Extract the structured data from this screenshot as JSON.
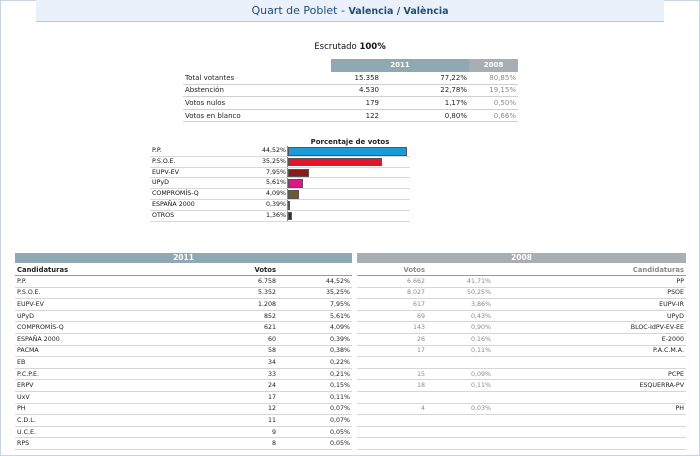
{
  "header": {
    "place": "Quart de Poblet",
    "separator": " - ",
    "province": "Valencia / València"
  },
  "escrutado": {
    "label": "Escrutado",
    "value": "100%"
  },
  "summary": {
    "year_2011": "2011",
    "year_2008": "2008",
    "rows": [
      {
        "label": "Total votantes",
        "v2011": "15.358",
        "p2011": "77,22%",
        "p2008": "80,85%"
      },
      {
        "label": "Abstención",
        "v2011": "4.530",
        "p2011": "22,78%",
        "p2008": "19,15%"
      },
      {
        "label": "Votos nulos",
        "v2011": "179",
        "p2011": "1,17%",
        "p2008": "0,50%"
      },
      {
        "label": "Votos en blanco",
        "v2011": "122",
        "p2011": "0,80%",
        "p2008": "0,66%"
      }
    ]
  },
  "chart_data": {
    "type": "bar",
    "title": "Porcentaje de votos",
    "categories": [
      "P.P.",
      "P.S.O.E.",
      "EUPV-EV",
      "UPyD",
      "COMPROMÍS-Q",
      "ESPAÑA 2000",
      "OTROS"
    ],
    "values": [
      44.52,
      35.25,
      7.95,
      5.61,
      4.09,
      0.39,
      1.36
    ],
    "labels": [
      "44,52%",
      "35,25%",
      "7,95%",
      "5,61%",
      "4,09%",
      "0,39%",
      "1,36%"
    ],
    "colors": [
      "#1a9ad6",
      "#e3142b",
      "#8b1a1a",
      "#e0138c",
      "#6b5a2a",
      "#ffffff",
      "#333333"
    ],
    "xlim": [
      0,
      45
    ]
  },
  "results": {
    "year_2011": "2011",
    "year_2008": "2008",
    "col_candidaturas": "Candidaturas",
    "col_votos": "Votos",
    "rows_2011": [
      {
        "name": "P.P.",
        "votes": "6.758",
        "pct": "44,52%"
      },
      {
        "name": "P.S.O.E.",
        "votes": "5.352",
        "pct": "35,25%"
      },
      {
        "name": "EUPV-EV",
        "votes": "1.208",
        "pct": "7,95%"
      },
      {
        "name": "UPyD",
        "votes": "852",
        "pct": "5,61%"
      },
      {
        "name": "COMPROMÍS-Q",
        "votes": "621",
        "pct": "4,09%"
      },
      {
        "name": "ESPAÑA 2000",
        "votes": "60",
        "pct": "0,39%"
      },
      {
        "name": "PACMA",
        "votes": "58",
        "pct": "0,38%"
      },
      {
        "name": "EB",
        "votes": "34",
        "pct": "0,22%"
      },
      {
        "name": "P.C.P.E.",
        "votes": "33",
        "pct": "0,21%"
      },
      {
        "name": "ERPV",
        "votes": "24",
        "pct": "0,15%"
      },
      {
        "name": "UxV",
        "votes": "17",
        "pct": "0,11%"
      },
      {
        "name": "PH",
        "votes": "12",
        "pct": "0,07%"
      },
      {
        "name": "C.D.L.",
        "votes": "11",
        "pct": "0,07%"
      },
      {
        "name": "U.C.E.",
        "votes": "9",
        "pct": "0,05%"
      },
      {
        "name": "RPS",
        "votes": "8",
        "pct": "0,05%"
      }
    ],
    "rows_2008": [
      {
        "votes": "6.662",
        "pct": "41,71%",
        "name": "PP"
      },
      {
        "votes": "8.027",
        "pct": "50,25%",
        "name": "PSOE"
      },
      {
        "votes": "617",
        "pct": "3,86%",
        "name": "EUPV-IR"
      },
      {
        "votes": "69",
        "pct": "0,43%",
        "name": "UPyD"
      },
      {
        "votes": "143",
        "pct": "0,90%",
        "name": "BLOC-IdPV-EV-EE"
      },
      {
        "votes": "26",
        "pct": "0,16%",
        "name": "E-2000"
      },
      {
        "votes": "17",
        "pct": "0,11%",
        "name": "P.A.C.M.A."
      },
      {
        "votes": "",
        "pct": "",
        "name": ""
      },
      {
        "votes": "15",
        "pct": "0,09%",
        "name": "PCPE"
      },
      {
        "votes": "18",
        "pct": "0,11%",
        "name": "ESQUERRA-PV"
      },
      {
        "votes": "",
        "pct": "",
        "name": ""
      },
      {
        "votes": "4",
        "pct": "0,03%",
        "name": "PH"
      },
      {
        "votes": "",
        "pct": "",
        "name": ""
      },
      {
        "votes": "",
        "pct": "",
        "name": ""
      },
      {
        "votes": "",
        "pct": "",
        "name": ""
      }
    ]
  }
}
